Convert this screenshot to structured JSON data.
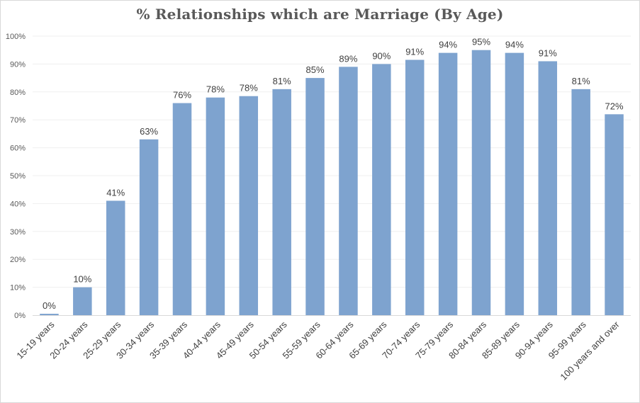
{
  "chart_data": {
    "type": "bar",
    "title": "% Relationships which are Marriage (By Age)",
    "categories": [
      "15-19 years",
      "20-24 years",
      "25-29 years",
      "30-34 years",
      "35-39 years",
      "40-44 years",
      "45-49 years",
      "50-54 years",
      "55-59 years",
      "60-64 years",
      "65-69 years",
      "70-74 years",
      "75-79 years",
      "80-84 years",
      "85-89 years",
      "90-94 years",
      "95-99 years",
      "100 years and over"
    ],
    "values": [
      0.5,
      10,
      41,
      63,
      76,
      78,
      78.5,
      81,
      85,
      89,
      90,
      91.5,
      94,
      95,
      94,
      91,
      81,
      72
    ],
    "data_labels": [
      "0%",
      "10%",
      "41%",
      "63%",
      "76%",
      "78%",
      "78%",
      "81%",
      "85%",
      "89%",
      "90%",
      "91%",
      "94%",
      "95%",
      "94%",
      "91%",
      "81%",
      "72%"
    ],
    "yticks": [
      "0%",
      "10%",
      "20%",
      "30%",
      "40%",
      "50%",
      "60%",
      "70%",
      "80%",
      "90%",
      "100%"
    ],
    "ylim": [
      0,
      100
    ],
    "xlabel": "",
    "ylabel": "",
    "grid": true,
    "bar_color": "#7ea3cf",
    "grid_color": "#efefef",
    "axis_color": "#d9d9d9"
  }
}
